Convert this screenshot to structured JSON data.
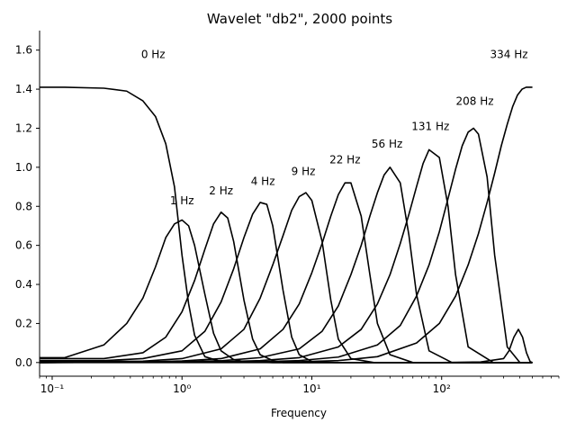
{
  "chart_data": {
    "type": "line",
    "title": "Wavelet \"db2\", 2000 points",
    "xlabel": "Frequency",
    "ylabel": "",
    "xscale": "log",
    "xlim": [
      0.08,
      800
    ],
    "ylim": [
      -0.07,
      1.7
    ],
    "grid": false,
    "spines": "left-bottom",
    "xticks": [
      {
        "value": 0.1,
        "label": "10⁻¹"
      },
      {
        "value": 1,
        "label": "10⁰"
      },
      {
        "value": 10,
        "label": "10¹"
      },
      {
        "value": 100,
        "label": "10²"
      }
    ],
    "yticks": [
      0.0,
      0.2,
      0.4,
      0.6,
      0.8,
      1.0,
      1.2,
      1.4,
      1.6
    ],
    "annotations": [
      {
        "text": "0 Hz",
        "x": 0.6,
        "y": 1.56
      },
      {
        "text": "1 Hz",
        "x": 1.0,
        "y": 0.81
      },
      {
        "text": "2 Hz",
        "x": 2.0,
        "y": 0.86
      },
      {
        "text": "4 Hz",
        "x": 4.2,
        "y": 0.91
      },
      {
        "text": "9 Hz",
        "x": 8.6,
        "y": 0.96
      },
      {
        "text": "22 Hz",
        "x": 18,
        "y": 1.02
      },
      {
        "text": "56 Hz",
        "x": 38,
        "y": 1.1
      },
      {
        "text": "131 Hz",
        "x": 82,
        "y": 1.19
      },
      {
        "text": "208 Hz",
        "x": 180,
        "y": 1.32
      },
      {
        "text": "334 Hz",
        "x": 330,
        "y": 1.56
      }
    ],
    "series": [
      {
        "x": [
          0.08,
          0.125,
          0.25,
          0.375,
          0.5,
          0.625,
          0.75,
          0.875,
          1.0,
          1.125,
          1.25,
          1.5,
          2.0,
          5.0,
          500
        ],
        "y": [
          1.41,
          1.41,
          1.405,
          1.39,
          1.34,
          1.26,
          1.12,
          0.9,
          0.55,
          0.3,
          0.14,
          0.03,
          0.005,
          0.0,
          0.0
        ]
      },
      {
        "x": [
          0.08,
          0.125,
          0.25,
          0.375,
          0.5,
          0.625,
          0.75,
          0.875,
          1.0,
          1.125,
          1.25,
          1.5,
          1.75,
          2.0,
          2.5,
          3.0,
          5.0,
          500
        ],
        "y": [
          0.025,
          0.025,
          0.09,
          0.2,
          0.33,
          0.49,
          0.64,
          0.71,
          0.73,
          0.7,
          0.6,
          0.35,
          0.15,
          0.06,
          0.015,
          0.005,
          0.0,
          0.0
        ]
      },
      {
        "x": [
          0.08,
          0.25,
          0.5,
          0.75,
          1.0,
          1.25,
          1.5,
          1.75,
          2.0,
          2.25,
          2.5,
          3.0,
          3.5,
          4.0,
          5.0,
          6.0,
          10,
          500
        ],
        "y": [
          0.02,
          0.02,
          0.05,
          0.13,
          0.26,
          0.42,
          0.58,
          0.71,
          0.77,
          0.74,
          0.62,
          0.32,
          0.12,
          0.04,
          0.01,
          0.0,
          0.0,
          0.0
        ]
      },
      {
        "x": [
          0.08,
          0.25,
          0.5,
          1.0,
          1.5,
          2.0,
          2.5,
          3.0,
          3.5,
          4.0,
          4.5,
          5.0,
          6.0,
          7.0,
          8.0,
          10,
          15,
          500
        ],
        "y": [
          0.01,
          0.01,
          0.02,
          0.06,
          0.16,
          0.31,
          0.48,
          0.64,
          0.76,
          0.82,
          0.81,
          0.7,
          0.37,
          0.13,
          0.04,
          0.005,
          0.0,
          0.0
        ]
      },
      {
        "x": [
          0.08,
          0.5,
          1.0,
          2.0,
          3.0,
          4.0,
          5.0,
          6.0,
          7.0,
          8.0,
          9.0,
          10,
          12,
          14,
          16,
          20,
          30,
          500
        ],
        "y": [
          0.005,
          0.007,
          0.02,
          0.07,
          0.17,
          0.33,
          0.5,
          0.65,
          0.78,
          0.85,
          0.87,
          0.83,
          0.62,
          0.32,
          0.12,
          0.02,
          0.0,
          0.0
        ]
      },
      {
        "x": [
          0.08,
          0.5,
          1.0,
          2.0,
          4.0,
          6.0,
          8.0,
          10,
          12,
          14,
          16,
          18,
          20,
          24,
          28,
          32,
          40,
          60,
          500
        ],
        "y": [
          0.0,
          0.003,
          0.008,
          0.02,
          0.07,
          0.17,
          0.3,
          0.46,
          0.61,
          0.75,
          0.86,
          0.92,
          0.92,
          0.75,
          0.45,
          0.2,
          0.04,
          0.0,
          0.0
        ]
      },
      {
        "x": [
          0.08,
          1.0,
          2.0,
          4.0,
          8.0,
          12,
          16,
          20,
          24,
          28,
          32,
          36,
          40,
          48,
          56,
          64,
          80,
          120,
          500
        ],
        "y": [
          0.0,
          0.004,
          0.009,
          0.025,
          0.07,
          0.16,
          0.29,
          0.45,
          0.6,
          0.75,
          0.87,
          0.96,
          1.0,
          0.92,
          0.65,
          0.35,
          0.06,
          0.0,
          0.0
        ]
      },
      {
        "x": [
          0.08,
          2.0,
          4.0,
          8.0,
          16,
          24,
          32,
          40,
          48,
          56,
          64,
          72,
          80,
          96,
          112,
          128,
          160,
          250,
          500
        ],
        "y": [
          0.0,
          0.004,
          0.01,
          0.025,
          0.08,
          0.17,
          0.3,
          0.45,
          0.61,
          0.76,
          0.9,
          1.02,
          1.09,
          1.05,
          0.8,
          0.45,
          0.08,
          0.0,
          0.0
        ]
      },
      {
        "x": [
          0.08,
          4.0,
          8.0,
          16,
          32,
          48,
          64,
          80,
          96,
          112,
          128,
          144,
          160,
          176,
          192,
          224,
          256,
          320,
          400,
          500
        ],
        "y": [
          0.0,
          0.004,
          0.01,
          0.028,
          0.09,
          0.19,
          0.34,
          0.5,
          0.67,
          0.84,
          0.99,
          1.11,
          1.18,
          1.2,
          1.17,
          0.95,
          0.55,
          0.08,
          0.0,
          0.0
        ]
      },
      {
        "x": [
          0.08,
          100,
          200,
          300,
          330,
          360,
          390,
          420,
          450,
          480,
          500
        ],
        "y": [
          0.0,
          0.0,
          0.003,
          0.02,
          0.06,
          0.13,
          0.17,
          0.13,
          0.05,
          0.005,
          0.0
        ]
      },
      {
        "x": [
          0.08,
          8.0,
          16,
          32,
          64,
          96,
          128,
          160,
          192,
          224,
          256,
          288,
          320,
          352,
          384,
          416,
          448,
          480,
          500
        ],
        "y": [
          0.0,
          0.004,
          0.01,
          0.03,
          0.1,
          0.2,
          0.34,
          0.5,
          0.66,
          0.82,
          0.97,
          1.11,
          1.22,
          1.31,
          1.37,
          1.4,
          1.41,
          1.41,
          1.41
        ]
      }
    ]
  }
}
